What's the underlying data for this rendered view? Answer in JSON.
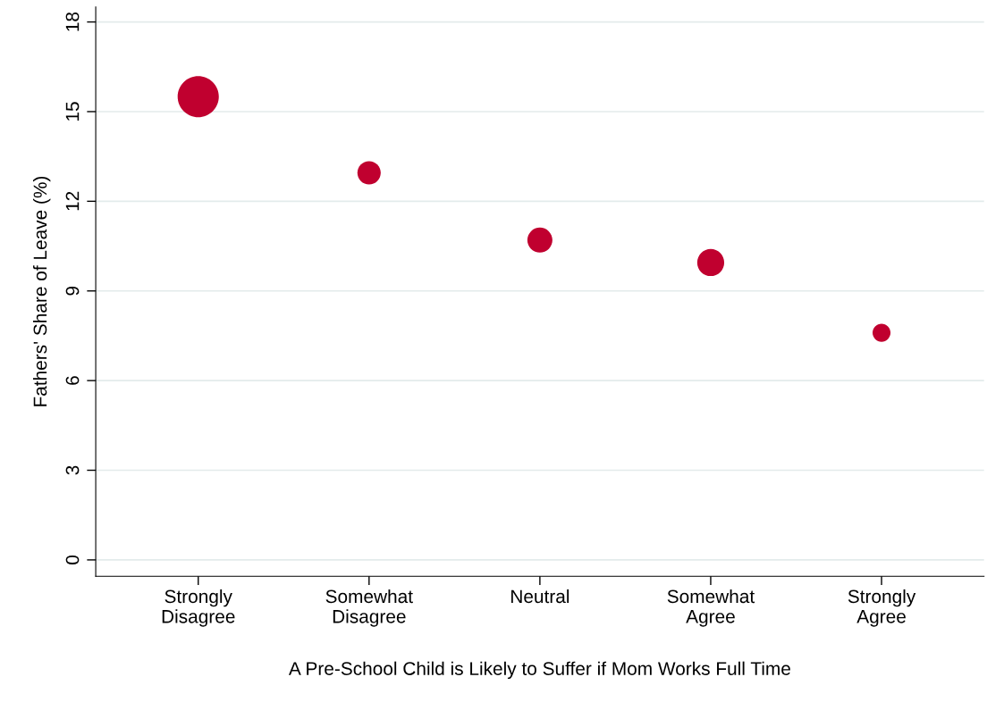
{
  "chart_data": {
    "type": "bubble",
    "xlabel": "A Pre-School Child is Likely to Suffer if Mom Works Full Time",
    "ylabel": "Fathers' Share of Leave (%)",
    "categories": [
      "Strongly\nDisagree",
      "Somewhat\nDisagree",
      "Neutral",
      "Somewhat\nAgree",
      "Strongly\nAgree"
    ],
    "values": [
      15.5,
      12.95,
      10.7,
      9.95,
      7.6
    ],
    "sizes": [
      1,
      0.32,
      0.37,
      0.43,
      0.19
    ],
    "color": "#c0002f",
    "ylim": [
      -0.55,
      18.5
    ],
    "yticks": [
      0,
      3,
      6,
      9,
      12,
      15,
      18
    ],
    "grid": "y",
    "legend": false
  }
}
